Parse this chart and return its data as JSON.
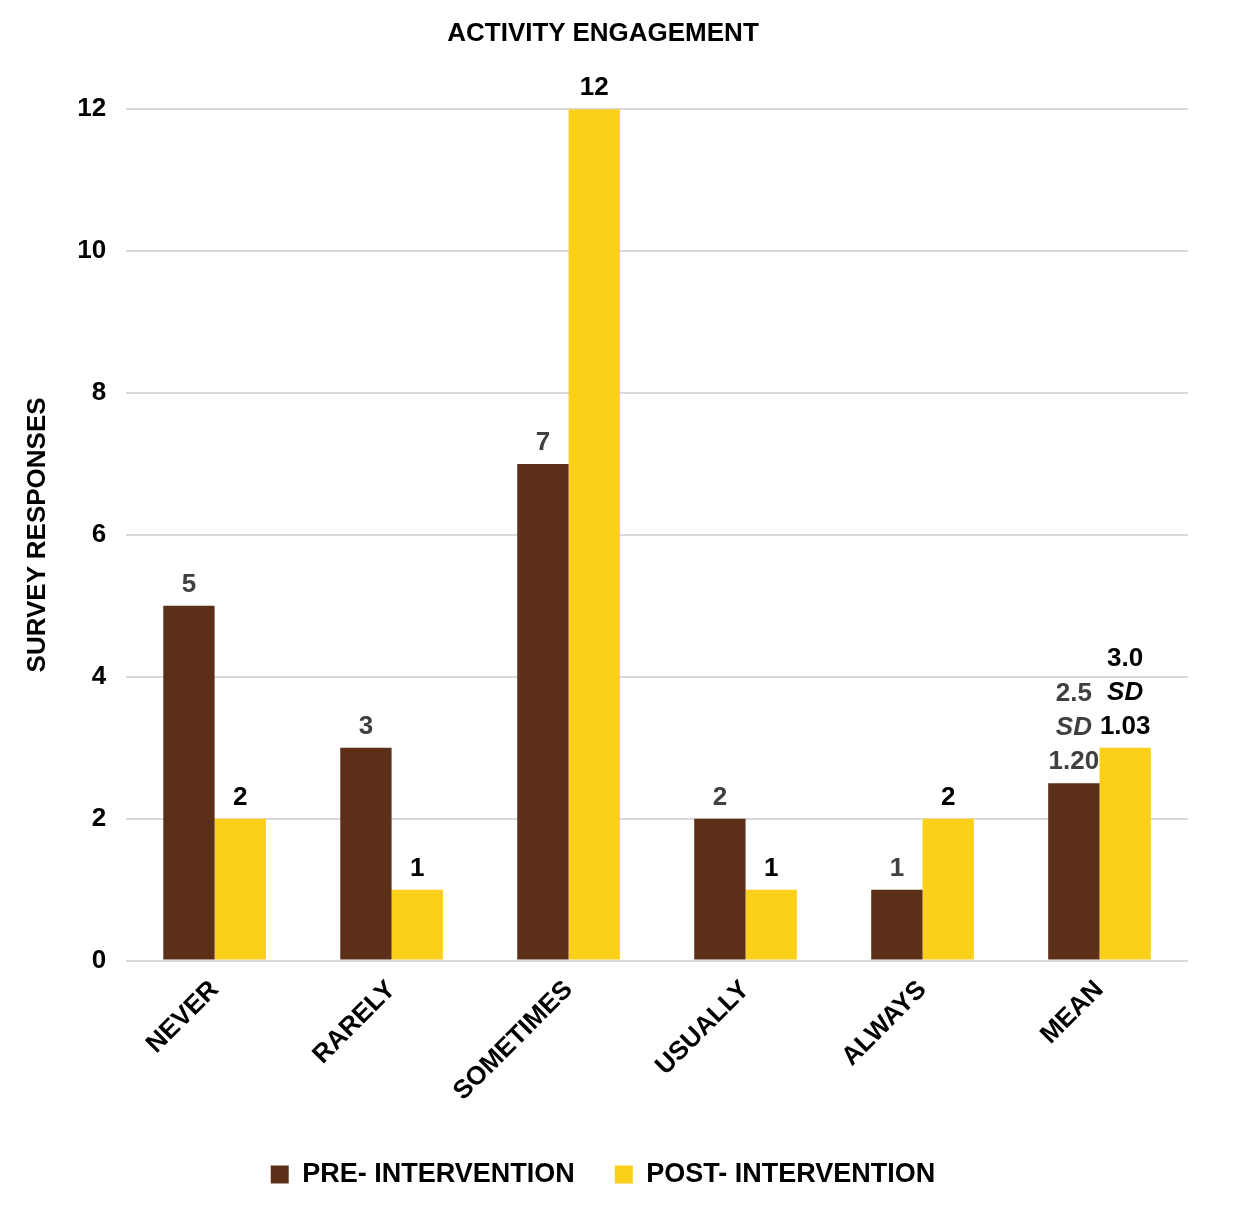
{
  "chart_data": {
    "type": "bar",
    "title": "ACTIVITY ENGAGEMENT",
    "ylabel": "SURVEY RESPONSES",
    "categories": [
      "NEVER",
      "RARELY",
      "SOMETIMES",
      "USUALLY",
      "ALWAYS",
      "MEAN"
    ],
    "series": [
      {
        "name": "PRE- INTERVENTION",
        "color": "#5c2f18",
        "values": [
          5,
          3,
          7,
          2,
          1,
          2.5
        ],
        "value_labels": [
          "5",
          "3",
          "7",
          "2",
          "1",
          "2.5\nSD\n1.20"
        ]
      },
      {
        "name": "POST- INTERVENTION",
        "color": "#fbcf1a",
        "values": [
          2,
          1,
          12,
          1,
          2,
          3.0
        ],
        "value_labels": [
          "2",
          "1",
          "12",
          "1",
          "2",
          "3.0\nSD\n1.03"
        ]
      }
    ],
    "ylim": [
      0,
      12
    ],
    "yticks": [
      0,
      2,
      4,
      6,
      8,
      10,
      12
    ],
    "grid": "y",
    "legend": "bottom"
  }
}
